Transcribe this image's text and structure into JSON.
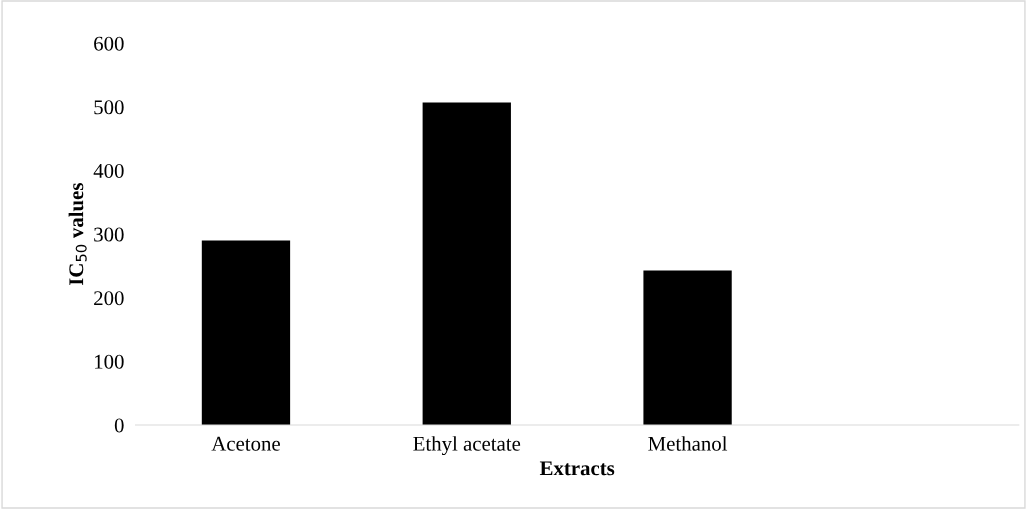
{
  "chart_data": {
    "type": "bar",
    "xlabel": "Extracts",
    "ylabel": "IC$_{50}$ values",
    "categories": [
      "Acetone",
      "Ethyl acetate",
      "Methanol",
      null
    ],
    "values": [
      290,
      507,
      243,
      null
    ],
    "color": "#000000",
    "ylim": [
      0,
      600
    ],
    "yticks": [
      0,
      100,
      200,
      300,
      400,
      500,
      600
    ],
    "grid": false
  }
}
